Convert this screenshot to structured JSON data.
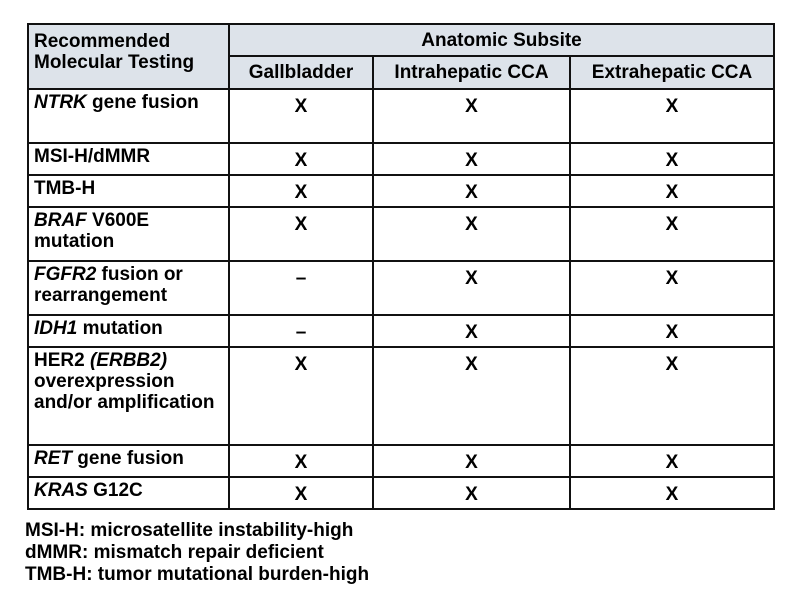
{
  "table": {
    "corner_header": [
      "Recommended",
      "Molecular Testing"
    ],
    "group_header": "Anatomic Subsite",
    "columns": [
      "Gallbladder",
      "Intrahepatic CCA",
      "Extrahepatic CCA"
    ],
    "rows": [
      {
        "italic": "NTRK",
        "text": " gene fusion",
        "values": [
          "X",
          "X",
          "X"
        ]
      },
      {
        "italic": "",
        "text": "MSI-H/dMMR",
        "values": [
          "X",
          "X",
          "X"
        ]
      },
      {
        "italic": "",
        "text": "TMB-H",
        "values": [
          "X",
          "X",
          "X"
        ]
      },
      {
        "italic": "BRAF",
        "text": " V600E mutation",
        "values": [
          "X",
          "X",
          "X"
        ]
      },
      {
        "italic": "FGFR2",
        "text": " fusion or rearrangement",
        "values": [
          "–",
          "X",
          "X"
        ]
      },
      {
        "italic": "IDH1",
        "text": " mutation",
        "values": [
          "–",
          "X",
          "X"
        ]
      },
      {
        "prefix": "HER2 ",
        "italic": "(ERBB2)",
        "text": " overexpression and/or amplification",
        "values": [
          "X",
          "X",
          "X"
        ]
      },
      {
        "italic": "RET",
        "text": " gene fusion",
        "values": [
          "X",
          "X",
          "X"
        ]
      },
      {
        "italic": "KRAS",
        "text": " G12C",
        "values": [
          "X",
          "X",
          "X"
        ]
      }
    ]
  },
  "footnotes": [
    "MSI-H: microsatellite instability-high",
    "dMMR: mismatch repair deficient",
    "TMB-H: tumor mutational burden-high"
  ],
  "colors": {
    "header_bg": "#dde3ea",
    "border": "#111111"
  }
}
